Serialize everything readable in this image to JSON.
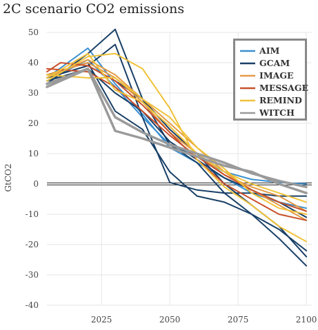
{
  "chart_data": {
    "type": "line",
    "title": "2C scenario CO2 emissions",
    "ylabel": "GtCO2",
    "xlabel": "",
    "xlim": [
      2005,
      2102
    ],
    "ylim": [
      -40,
      50
    ],
    "xticks": [
      2025,
      2050,
      2075,
      2100
    ],
    "yticks": [
      50,
      40,
      30,
      20,
      10,
      0,
      -10,
      -20,
      -30,
      -40
    ],
    "grid": true,
    "legend_position": "top-right",
    "colors": {
      "AIM": "#3a8fd0",
      "GCAM": "#183f66",
      "IMAGE": "#e39a45",
      "MESSAGE": "#c8502b",
      "REMIND": "#f0c23a",
      "WITCH": "#9a9a9a"
    },
    "series": [
      {
        "name": "AIM",
        "model": "AIM",
        "width": 2,
        "points": [
          [
            2005,
            35
          ],
          [
            2020,
            44.8
          ],
          [
            2030,
            33
          ],
          [
            2040,
            23
          ],
          [
            2050,
            12
          ],
          [
            2060,
            7
          ],
          [
            2070,
            2
          ],
          [
            2080,
            -3
          ],
          [
            2090,
            -6
          ],
          [
            2100,
            -8
          ]
        ]
      },
      {
        "name": "",
        "model": "AIM",
        "width": 2,
        "points": [
          [
            2005,
            34
          ],
          [
            2020,
            41
          ],
          [
            2030,
            32
          ],
          [
            2040,
            22
          ],
          [
            2050,
            13
          ],
          [
            2060,
            9
          ],
          [
            2070,
            4
          ],
          [
            2080,
            1.5
          ],
          [
            2090,
            0.5
          ],
          [
            2100,
            0
          ]
        ]
      },
      {
        "name": "GCAM",
        "model": "GCAM",
        "width": 2,
        "points": [
          [
            2005,
            33
          ],
          [
            2020,
            43
          ],
          [
            2030,
            51
          ],
          [
            2040,
            28
          ],
          [
            2050,
            13
          ],
          [
            2060,
            7
          ],
          [
            2070,
            -3
          ],
          [
            2080,
            -10
          ],
          [
            2090,
            -18
          ],
          [
            2100,
            -27
          ]
        ]
      },
      {
        "name": "",
        "model": "GCAM",
        "width": 2,
        "points": [
          [
            2005,
            35
          ],
          [
            2020,
            39
          ],
          [
            2030,
            46
          ],
          [
            2040,
            22
          ],
          [
            2050,
            0.5
          ],
          [
            2060,
            -2
          ],
          [
            2070,
            -3
          ],
          [
            2080,
            -3
          ],
          [
            2090,
            -4
          ],
          [
            2100,
            -4
          ]
        ]
      },
      {
        "name": "",
        "model": "GCAM",
        "width": 2,
        "points": [
          [
            2005,
            36
          ],
          [
            2020,
            40
          ],
          [
            2030,
            24
          ],
          [
            2040,
            18
          ],
          [
            2050,
            4
          ],
          [
            2060,
            -4
          ],
          [
            2070,
            -6
          ],
          [
            2080,
            -10
          ],
          [
            2090,
            -15
          ],
          [
            2100,
            -22
          ]
        ]
      },
      {
        "name": "",
        "model": "GCAM",
        "width": 2,
        "points": [
          [
            2005,
            35
          ],
          [
            2020,
            39
          ],
          [
            2030,
            34
          ],
          [
            2040,
            28
          ],
          [
            2050,
            18
          ],
          [
            2060,
            10
          ],
          [
            2070,
            0
          ],
          [
            2080,
            -7
          ],
          [
            2090,
            -14
          ],
          [
            2100,
            -24
          ]
        ]
      },
      {
        "name": "",
        "model": "GCAM",
        "width": 2,
        "points": [
          [
            2005,
            34
          ],
          [
            2020,
            38
          ],
          [
            2030,
            30
          ],
          [
            2040,
            24
          ],
          [
            2050,
            14
          ],
          [
            2060,
            8
          ],
          [
            2070,
            2
          ],
          [
            2080,
            -2
          ],
          [
            2090,
            -6
          ],
          [
            2100,
            -11
          ]
        ]
      },
      {
        "name": "IMAGE",
        "model": "IMAGE",
        "width": 2,
        "points": [
          [
            2005,
            35
          ],
          [
            2020,
            41
          ],
          [
            2030,
            36
          ],
          [
            2040,
            28
          ],
          [
            2050,
            20
          ],
          [
            2060,
            12
          ],
          [
            2070,
            4
          ],
          [
            2080,
            -2
          ],
          [
            2090,
            -7
          ],
          [
            2100,
            -12
          ]
        ]
      },
      {
        "name": "",
        "model": "IMAGE",
        "width": 2,
        "points": [
          [
            2005,
            36
          ],
          [
            2020,
            40
          ],
          [
            2030,
            35
          ],
          [
            2040,
            27
          ],
          [
            2050,
            17
          ],
          [
            2060,
            10
          ],
          [
            2070,
            3
          ],
          [
            2080,
            -1
          ],
          [
            2090,
            -4
          ],
          [
            2100,
            -9
          ]
        ]
      },
      {
        "name": "MESSAGE",
        "model": "MESSAGE",
        "width": 2,
        "points": [
          [
            2005,
            37
          ],
          [
            2010,
            40
          ],
          [
            2020,
            39
          ],
          [
            2030,
            34
          ],
          [
            2040,
            26
          ],
          [
            2050,
            17
          ],
          [
            2060,
            8
          ],
          [
            2070,
            0
          ],
          [
            2080,
            -5
          ],
          [
            2090,
            -10
          ],
          [
            2100,
            -12
          ]
        ]
      },
      {
        "name": "",
        "model": "MESSAGE",
        "width": 2,
        "points": [
          [
            2005,
            38
          ],
          [
            2020,
            37
          ],
          [
            2030,
            32
          ],
          [
            2040,
            24
          ],
          [
            2050,
            16
          ],
          [
            2060,
            9
          ],
          [
            2070,
            3
          ],
          [
            2080,
            -2
          ],
          [
            2090,
            -6
          ],
          [
            2100,
            -9
          ]
        ]
      },
      {
        "name": "REMIND",
        "model": "REMIND",
        "width": 2,
        "points": [
          [
            2005,
            34
          ],
          [
            2020,
            42
          ],
          [
            2030,
            43
          ],
          [
            2040,
            38
          ],
          [
            2050,
            25
          ],
          [
            2060,
            8
          ],
          [
            2070,
            -1
          ],
          [
            2080,
            -7
          ],
          [
            2090,
            -14
          ],
          [
            2100,
            -19
          ]
        ]
      },
      {
        "name": "",
        "model": "REMIND",
        "width": 2,
        "points": [
          [
            2005,
            36
          ],
          [
            2020,
            35
          ],
          [
            2030,
            35
          ],
          [
            2040,
            28
          ],
          [
            2050,
            22
          ],
          [
            2060,
            12
          ],
          [
            2070,
            5
          ],
          [
            2080,
            -3
          ],
          [
            2090,
            -8
          ],
          [
            2100,
            -10
          ]
        ]
      },
      {
        "name": "",
        "model": "REMIND",
        "width": 2,
        "points": [
          [
            2005,
            35
          ],
          [
            2020,
            43
          ],
          [
            2030,
            31
          ],
          [
            2040,
            27
          ],
          [
            2050,
            19
          ],
          [
            2060,
            10
          ],
          [
            2070,
            4
          ],
          [
            2080,
            0
          ],
          [
            2090,
            -3
          ],
          [
            2100,
            -6
          ]
        ]
      },
      {
        "name": "WITCH",
        "model": "WITCH",
        "width": 3.5,
        "points": [
          [
            2005,
            32
          ],
          [
            2020,
            38
          ],
          [
            2030,
            17.5
          ],
          [
            2040,
            15
          ],
          [
            2050,
            12
          ],
          [
            2060,
            9
          ],
          [
            2070,
            6
          ],
          [
            2080,
            4
          ],
          [
            2090,
            0
          ],
          [
            2100,
            -3
          ]
        ]
      },
      {
        "name": "",
        "model": "WITCH",
        "width": 3.5,
        "points": [
          [
            2005,
            33
          ],
          [
            2020,
            38
          ],
          [
            2030,
            22
          ],
          [
            2040,
            17
          ],
          [
            2050,
            13
          ],
          [
            2060,
            10
          ],
          [
            2070,
            7
          ],
          [
            2080,
            3.5
          ],
          [
            2090,
            1
          ],
          [
            2100,
            -1
          ]
        ]
      }
    ],
    "legend": [
      "AIM",
      "GCAM",
      "IMAGE",
      "MESSAGE",
      "REMIND",
      "WITCH"
    ]
  }
}
